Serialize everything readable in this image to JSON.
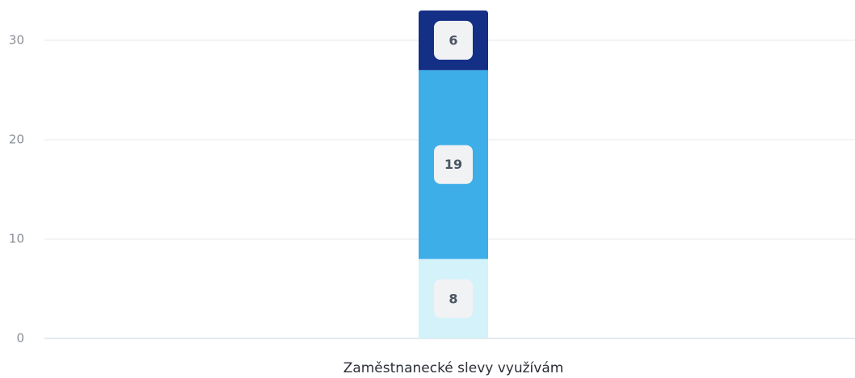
{
  "chart_data": {
    "type": "stacked-bar",
    "categories": [
      "Zaměstnanecké slevy využívám"
    ],
    "series": [
      {
        "color": "#d3f2fa",
        "values": [
          8
        ]
      },
      {
        "color": "#3daee8",
        "values": [
          19
        ]
      },
      {
        "color": "#142f86",
        "values": [
          6
        ]
      }
    ],
    "ylim": [
      0,
      33
    ],
    "yticks": [
      0,
      10,
      20,
      30
    ],
    "grid": true
  }
}
